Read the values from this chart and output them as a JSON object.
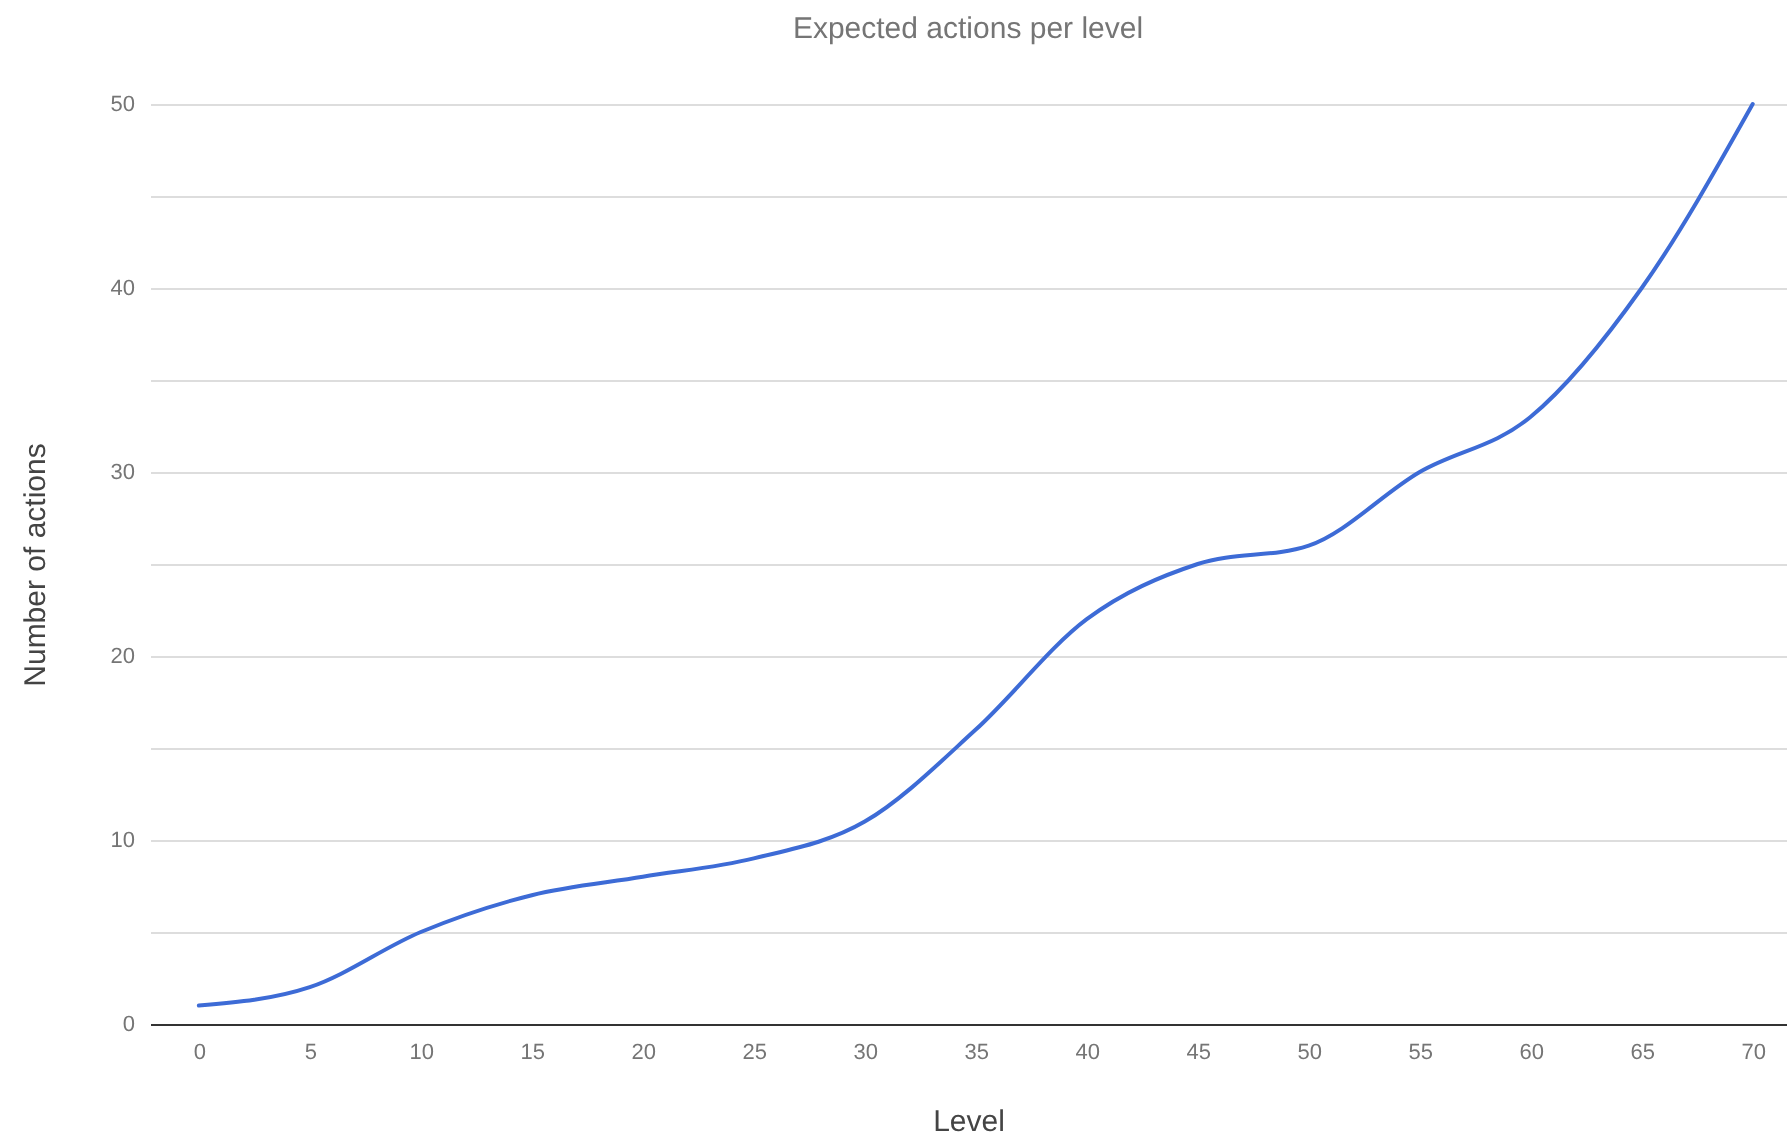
{
  "chart_data": {
    "type": "line",
    "title": "Expected actions per level",
    "xlabel": "Level",
    "ylabel": "Number of actions",
    "x": [
      0,
      5,
      10,
      15,
      20,
      25,
      30,
      35,
      40,
      45,
      50,
      55,
      60,
      65,
      70
    ],
    "series": [
      {
        "color": "#3d6bd6",
        "values": [
          1,
          2,
          5,
          7,
          8,
          9,
          11,
          16,
          22,
          25,
          26,
          30,
          33,
          40,
          50
        ]
      }
    ],
    "xlim": [
      -2.2,
      71.5
    ],
    "xticks": [
      0,
      5,
      10,
      15,
      20,
      25,
      30,
      35,
      40,
      45,
      50,
      55,
      60,
      65,
      70
    ],
    "ylim": [
      0,
      50
    ],
    "yticks": [
      0,
      {
        "value": 5,
        "label": null
      },
      10,
      {
        "value": 15,
        "label": null
      },
      20,
      {
        "value": 25,
        "label": null
      },
      30,
      {
        "value": 35,
        "label": null
      },
      40,
      {
        "value": 45,
        "label": null
      },
      50
    ],
    "grid": "y",
    "marker": "none",
    "line_style": "solid"
  }
}
